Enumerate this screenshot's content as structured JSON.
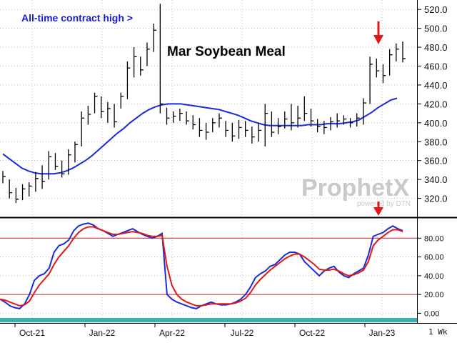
{
  "chart_data": [
    {
      "type": "bar",
      "subtype": "ohlc-weekly",
      "title": "Mar Soybean Meal",
      "annotation": "All-time contract high >",
      "period_label": "1 Wk",
      "x_ticks": [
        "Oct-21",
        "Jan-22",
        "Apr-22",
        "Jul-22",
        "Oct-22",
        "Jan-23"
      ],
      "y_ticks": [
        "520.0",
        "500.0",
        "480.0",
        "460.0",
        "440.0",
        "420.0",
        "400.0",
        "380.0",
        "360.0",
        "340.0",
        "320.0"
      ],
      "ylim": [
        300,
        530
      ],
      "grid": true,
      "bars": [
        {
          "h": 349,
          "l": 336,
          "c": 343
        },
        {
          "h": 340,
          "l": 320,
          "c": 326
        },
        {
          "h": 331,
          "l": 315,
          "c": 319
        },
        {
          "h": 335,
          "l": 318,
          "c": 330
        },
        {
          "h": 337,
          "l": 322,
          "c": 333
        },
        {
          "h": 348,
          "l": 327,
          "c": 341
        },
        {
          "h": 355,
          "l": 330,
          "c": 338
        },
        {
          "h": 370,
          "l": 340,
          "c": 364
        },
        {
          "h": 368,
          "l": 350,
          "c": 354
        },
        {
          "h": 360,
          "l": 342,
          "c": 346
        },
        {
          "h": 372,
          "l": 345,
          "c": 366
        },
        {
          "h": 380,
          "l": 358,
          "c": 377
        },
        {
          "h": 412,
          "l": 375,
          "c": 405
        },
        {
          "h": 418,
          "l": 398,
          "c": 409
        },
        {
          "h": 432,
          "l": 410,
          "c": 428
        },
        {
          "h": 428,
          "l": 405,
          "c": 412
        },
        {
          "h": 422,
          "l": 400,
          "c": 415
        },
        {
          "h": 420,
          "l": 395,
          "c": 401
        },
        {
          "h": 432,
          "l": 415,
          "c": 428
        },
        {
          "h": 465,
          "l": 425,
          "c": 458
        },
        {
          "h": 480,
          "l": 448,
          "c": 470
        },
        {
          "h": 470,
          "l": 450,
          "c": 456
        },
        {
          "h": 485,
          "l": 460,
          "c": 478
        },
        {
          "h": 505,
          "l": 475,
          "c": 498
        },
        {
          "h": 526,
          "l": 410,
          "c": 420
        },
        {
          "h": 416,
          "l": 398,
          "c": 405
        },
        {
          "h": 412,
          "l": 400,
          "c": 407
        },
        {
          "h": 415,
          "l": 402,
          "c": 410
        },
        {
          "h": 412,
          "l": 398,
          "c": 402
        },
        {
          "h": 408,
          "l": 393,
          "c": 398
        },
        {
          "h": 405,
          "l": 385,
          "c": 392
        },
        {
          "h": 400,
          "l": 382,
          "c": 390
        },
        {
          "h": 405,
          "l": 390,
          "c": 400
        },
        {
          "h": 410,
          "l": 395,
          "c": 405
        },
        {
          "h": 402,
          "l": 385,
          "c": 392
        },
        {
          "h": 400,
          "l": 380,
          "c": 386
        },
        {
          "h": 403,
          "l": 383,
          "c": 395
        },
        {
          "h": 402,
          "l": 385,
          "c": 392
        },
        {
          "h": 396,
          "l": 378,
          "c": 385
        },
        {
          "h": 400,
          "l": 380,
          "c": 392
        },
        {
          "h": 420,
          "l": 375,
          "c": 410
        },
        {
          "h": 412,
          "l": 385,
          "c": 390
        },
        {
          "h": 405,
          "l": 388,
          "c": 396
        },
        {
          "h": 412,
          "l": 394,
          "c": 404
        },
        {
          "h": 420,
          "l": 392,
          "c": 400
        },
        {
          "h": 418,
          "l": 395,
          "c": 405
        },
        {
          "h": 428,
          "l": 402,
          "c": 410
        },
        {
          "h": 415,
          "l": 396,
          "c": 402
        },
        {
          "h": 404,
          "l": 390,
          "c": 396
        },
        {
          "h": 402,
          "l": 388,
          "c": 395
        },
        {
          "h": 406,
          "l": 392,
          "c": 401
        },
        {
          "h": 410,
          "l": 395,
          "c": 402
        },
        {
          "h": 408,
          "l": 398,
          "c": 404
        },
        {
          "h": 405,
          "l": 395,
          "c": 400
        },
        {
          "h": 410,
          "l": 396,
          "c": 405
        },
        {
          "h": 426,
          "l": 398,
          "c": 421
        },
        {
          "h": 470,
          "l": 420,
          "c": 462
        },
        {
          "h": 468,
          "l": 448,
          "c": 455
        },
        {
          "h": 462,
          "l": 442,
          "c": 450
        },
        {
          "h": 478,
          "l": 450,
          "c": 472
        },
        {
          "h": 484,
          "l": 465,
          "c": 478
        },
        {
          "h": 486,
          "l": 464,
          "c": 468
        }
      ],
      "series": [
        {
          "name": "moving average",
          "color": "#1a2bd9",
          "values": [
            367,
            362,
            357,
            352,
            349,
            347,
            346,
            346,
            346,
            347,
            349,
            352,
            356,
            360,
            365,
            371,
            377,
            383,
            389,
            394,
            400,
            405,
            410,
            414,
            417,
            419,
            420,
            420,
            420,
            419,
            418,
            417,
            416,
            415,
            414,
            412,
            410,
            408,
            405,
            402,
            400,
            398,
            397,
            397,
            397,
            397,
            397,
            397,
            398,
            398,
            398,
            399,
            399,
            399,
            400,
            401,
            403,
            407,
            411,
            416,
            420,
            424,
            426
          ]
        }
      ]
    },
    {
      "type": "line",
      "subtype": "stochastic",
      "ylim": [
        -5,
        100
      ],
      "y_ticks": [
        "80.00",
        "60.00",
        "40.00",
        "20.00",
        "0.00"
      ],
      "reference_lines": [
        80,
        20
      ],
      "series": [
        {
          "name": "K",
          "color": "#1a2bd9",
          "values": [
            15,
            12,
            8,
            6,
            5,
            10,
            20,
            35,
            40,
            42,
            48,
            65,
            72,
            74,
            78,
            88,
            93,
            95,
            96,
            94,
            90,
            88,
            85,
            82,
            84,
            86,
            88,
            90,
            87,
            84,
            82,
            80,
            82,
            85,
            20,
            15,
            12,
            10,
            8,
            6,
            5,
            8,
            10,
            12,
            10,
            9,
            9,
            10,
            12,
            15,
            20,
            28,
            38,
            42,
            45,
            50,
            52,
            57,
            62,
            65,
            65,
            63,
            55,
            50,
            45,
            40,
            45,
            48,
            50,
            44,
            40,
            38,
            42,
            45,
            48,
            62,
            82,
            84,
            86,
            90,
            93,
            90,
            88
          ]
        },
        {
          "name": "D",
          "color": "#e01818",
          "values": [
            15,
            14,
            12,
            10,
            8,
            9,
            13,
            22,
            30,
            36,
            42,
            52,
            60,
            66,
            72,
            80,
            86,
            90,
            92,
            92,
            90,
            88,
            86,
            84,
            84,
            85,
            86,
            87,
            86,
            85,
            83,
            82,
            82,
            83,
            50,
            30,
            20,
            15,
            12,
            10,
            8,
            8,
            9,
            10,
            10,
            10,
            10,
            10,
            11,
            13,
            16,
            22,
            30,
            36,
            41,
            46,
            50,
            54,
            58,
            61,
            63,
            63,
            60,
            56,
            52,
            47,
            46,
            46,
            47,
            45,
            42,
            40,
            41,
            43,
            46,
            55,
            72,
            78,
            82,
            86,
            89,
            89,
            87
          ]
        }
      ]
    }
  ],
  "watermark": {
    "brand": "ProphetX",
    "sub": "powered by DTN"
  },
  "colors": {
    "price_bars": "#000000",
    "ma": "#1a2bd9",
    "stoch_k": "#1a2bd9",
    "stoch_d": "#e01818",
    "ref_lines": "#cc2222",
    "arrow": "#e01818",
    "grid": "#999999",
    "timeline": "#36b4b4"
  }
}
